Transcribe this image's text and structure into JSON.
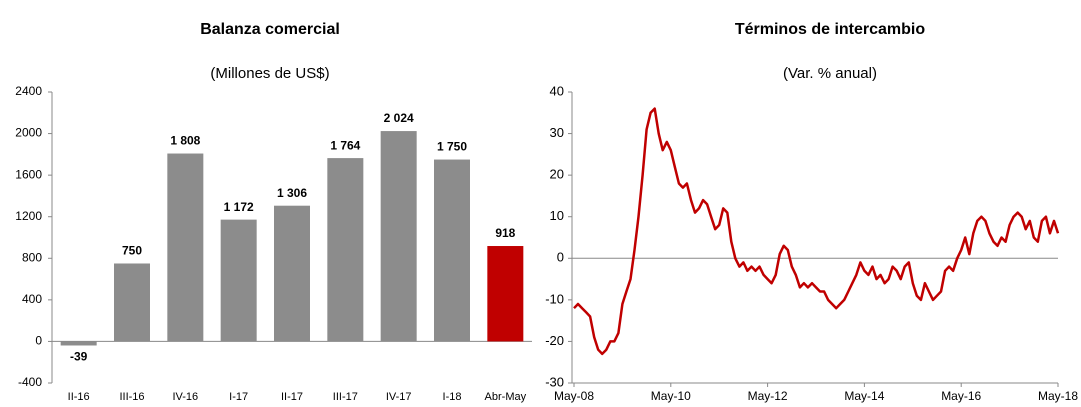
{
  "chart_data": [
    {
      "type": "bar",
      "title": "Balanza comercial",
      "subtitle": "(Millones de US$)",
      "categories": [
        "II-16",
        "III-16",
        "IV-16",
        "I-17",
        "II-17",
        "III-17",
        "IV-17",
        "I-18",
        "Abr-May"
      ],
      "values": [
        -39,
        750,
        1808,
        1172,
        1306,
        1764,
        2024,
        1750,
        918
      ],
      "value_labels": [
        "-39",
        "750",
        "1 808",
        "1 172",
        "1 306",
        "1 764",
        "2 024",
        "1 750",
        "918"
      ],
      "colors": [
        "#8c8c8c",
        "#8c8c8c",
        "#8c8c8c",
        "#8c8c8c",
        "#8c8c8c",
        "#8c8c8c",
        "#8c8c8c",
        "#8c8c8c",
        "#c00000"
      ],
      "ylim": [
        -400,
        2400
      ],
      "yticks": [
        -400,
        0,
        400,
        800,
        1200,
        1600,
        2000,
        2400
      ]
    },
    {
      "type": "line",
      "title": "Términos de intercambio",
      "subtitle": "(Var. % anual)",
      "x": [
        "May-08",
        "Jun-08",
        "Jul-08",
        "Ago-08",
        "Sep-08",
        "Oct-08",
        "Nov-08",
        "Dic-08",
        "Ene-09",
        "Feb-09",
        "Mar-09",
        "Abr-09",
        "May-09",
        "Jun-09",
        "Jul-09",
        "Ago-09",
        "Sep-09",
        "Oct-09",
        "Nov-09",
        "Dic-09",
        "Ene-10",
        "Feb-10",
        "Mar-10",
        "Abr-10",
        "May-10",
        "Jun-10",
        "Jul-10",
        "Ago-10",
        "Sep-10",
        "Oct-10",
        "Nov-10",
        "Dic-10",
        "Ene-11",
        "Feb-11",
        "Mar-11",
        "Abr-11",
        "May-11",
        "Jun-11",
        "Jul-11",
        "Ago-11",
        "Sep-11",
        "Oct-11",
        "Nov-11",
        "Dic-11",
        "Ene-12",
        "Feb-12",
        "Mar-12",
        "Abr-12",
        "May-12",
        "Jun-12",
        "Jul-12",
        "Ago-12",
        "Sep-12",
        "Oct-12",
        "Nov-12",
        "Dic-12",
        "Ene-13",
        "Feb-13",
        "Mar-13",
        "Abr-13",
        "May-13",
        "Jun-13",
        "Jul-13",
        "Ago-13",
        "Sep-13",
        "Oct-13",
        "Nov-13",
        "Dic-13",
        "Ene-14",
        "Feb-14",
        "Mar-14",
        "Abr-14",
        "May-14",
        "Jun-14",
        "Jul-14",
        "Ago-14",
        "Sep-14",
        "Oct-14",
        "Nov-14",
        "Dic-14",
        "Ene-15",
        "Feb-15",
        "Mar-15",
        "Abr-15",
        "May-15",
        "Jun-15",
        "Jul-15",
        "Ago-15",
        "Sep-15",
        "Oct-15",
        "Nov-15",
        "Dic-15",
        "Ene-16",
        "Feb-16",
        "Mar-16",
        "Abr-16",
        "May-16",
        "Jun-16",
        "Jul-16",
        "Ago-16",
        "Sep-16",
        "Oct-16",
        "Nov-16",
        "Dic-16",
        "Ene-17",
        "Feb-17",
        "Mar-17",
        "Abr-17",
        "May-17",
        "Jun-17",
        "Jul-17",
        "Ago-17",
        "Sep-17",
        "Oct-17",
        "Nov-17",
        "Dic-17",
        "Ene-18",
        "Feb-18",
        "Mar-18",
        "Abr-18",
        "May-18"
      ],
      "values": [
        -12,
        -11,
        -12,
        -13,
        -14,
        -19,
        -22,
        -23,
        -22,
        -20,
        -20,
        -18,
        -11,
        -8,
        -5,
        2,
        10,
        20,
        31,
        35,
        36,
        30,
        26,
        28,
        26,
        22,
        18,
        17,
        18,
        14,
        11,
        12,
        14,
        13,
        10,
        7,
        8,
        12,
        11,
        4,
        0,
        -2,
        -1,
        -3,
        -2,
        -3,
        -2,
        -4,
        -5,
        -6,
        -4,
        1,
        3,
        2,
        -2,
        -4,
        -7,
        -6,
        -7,
        -6,
        -7,
        -8,
        -8,
        -10,
        -11,
        -12,
        -11,
        -10,
        -8,
        -6,
        -4,
        -1,
        -3,
        -4,
        -2,
        -5,
        -4,
        -6,
        -5,
        -2,
        -3,
        -5,
        -2,
        -1,
        -6,
        -9,
        -10,
        -6,
        -8,
        -10,
        -9,
        -8,
        -3,
        -2,
        -3,
        0,
        2,
        5,
        1,
        6,
        9,
        10,
        9,
        6,
        4,
        3,
        5,
        4,
        8,
        10,
        11,
        10,
        7,
        9,
        5,
        4,
        9,
        10,
        6,
        9,
        6
      ],
      "color": "#c00000",
      "xticks": [
        "May-08",
        "May-10",
        "May-12",
        "May-14",
        "May-16",
        "May-18"
      ],
      "ylim": [
        -30,
        40
      ],
      "yticks": [
        -30,
        -20,
        -10,
        0,
        10,
        20,
        30,
        40
      ]
    }
  ]
}
